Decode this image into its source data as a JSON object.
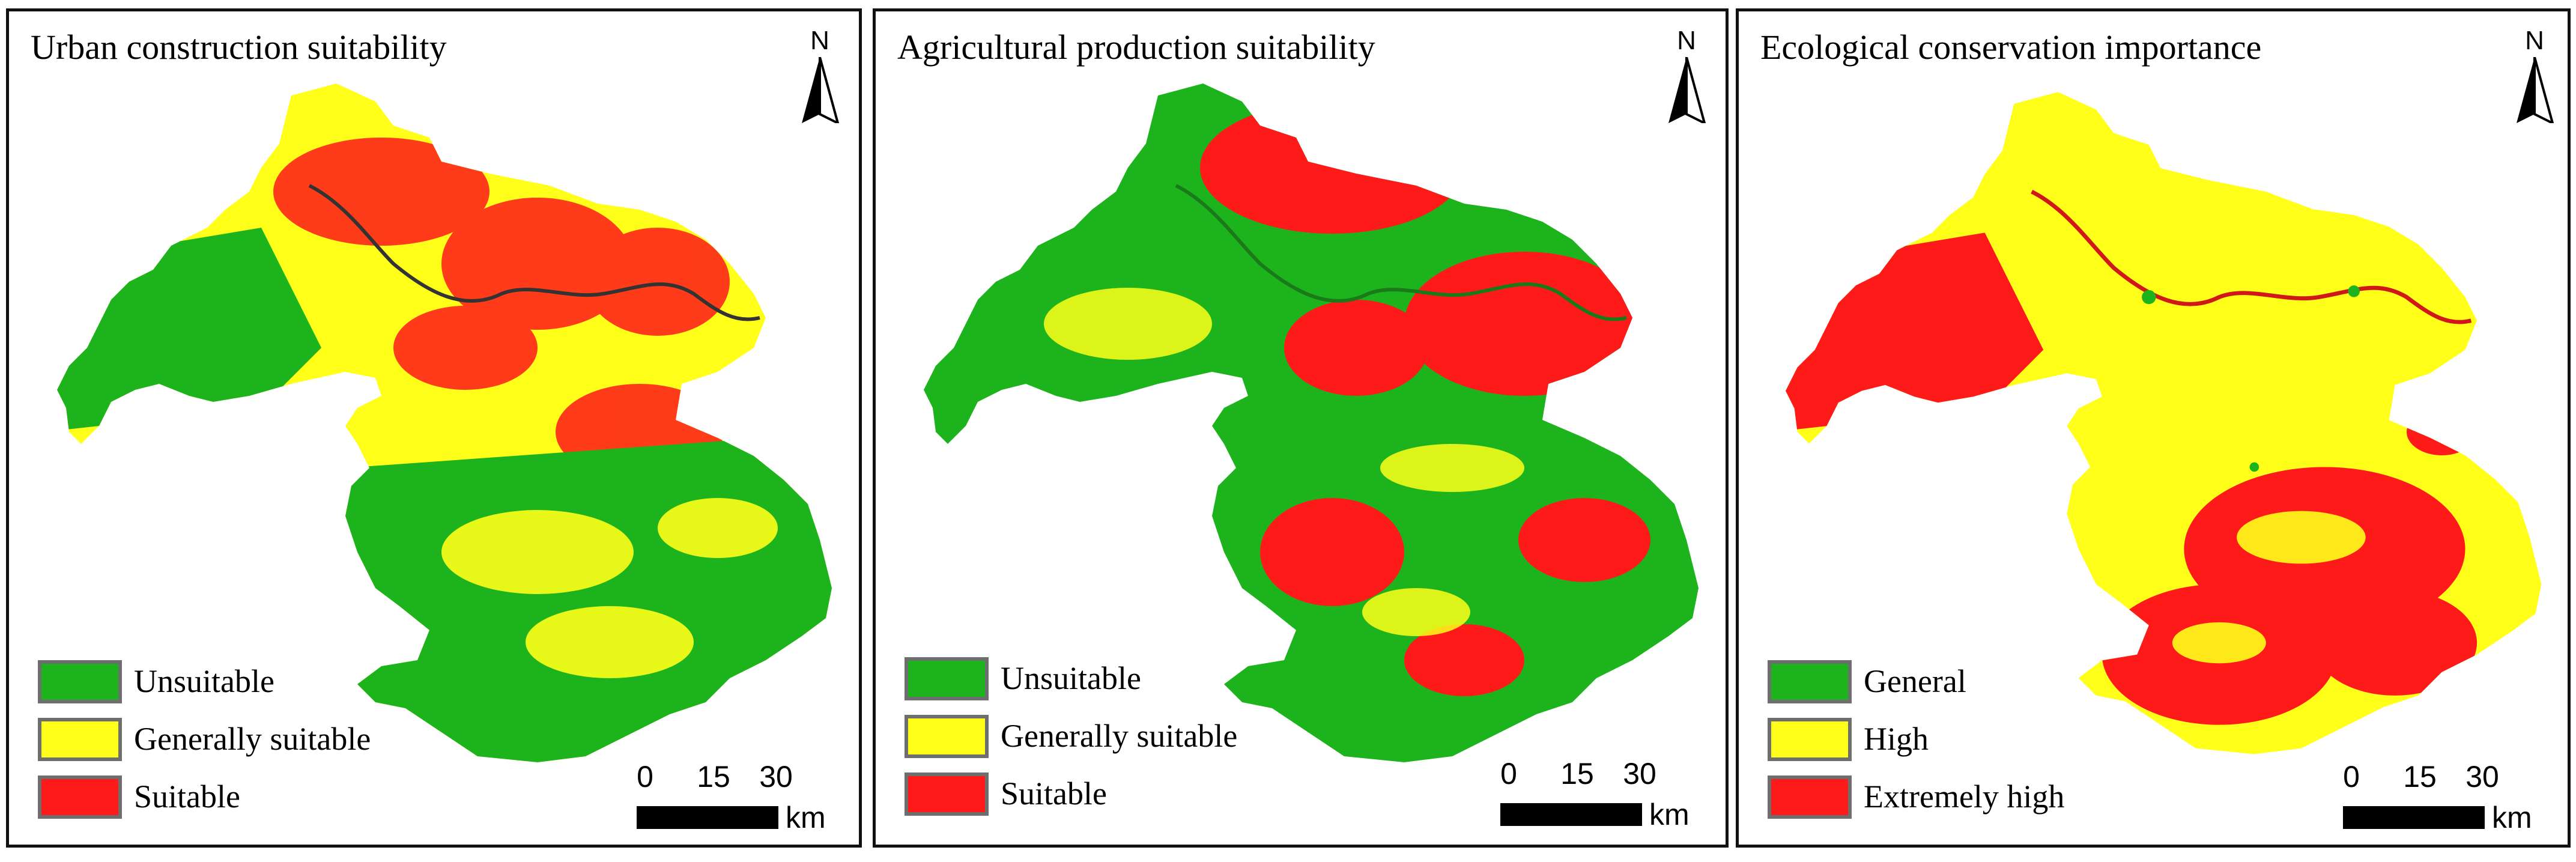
{
  "colors": {
    "green": "#1db31d",
    "yellow": "#ffff1a",
    "red": "#ff1a1a",
    "river": "#333333",
    "border": "#111111"
  },
  "north_label": "N",
  "scale": {
    "ticks": [
      "0",
      "15",
      "30"
    ],
    "unit": "km"
  },
  "panels": [
    {
      "title": "Urban construction suitability",
      "legend": [
        {
          "label": "Unsuitable",
          "color": "#1db31d"
        },
        {
          "label": "Generally suitable",
          "color": "#ffff1a"
        },
        {
          "label": "Suitable",
          "color": "#ff1a1a"
        }
      ]
    },
    {
      "title": "Agricultural production suitability",
      "legend": [
        {
          "label": "Unsuitable",
          "color": "#1db31d"
        },
        {
          "label": "Generally suitable",
          "color": "#ffff1a"
        },
        {
          "label": "Suitable",
          "color": "#ff1a1a"
        }
      ]
    },
    {
      "title": "Ecological conservation importance",
      "legend": [
        {
          "label": "General",
          "color": "#1db31d"
        },
        {
          "label": "High",
          "color": "#ffff1a"
        },
        {
          "label": "Extremely high",
          "color": "#ff1a1a"
        }
      ]
    }
  ]
}
